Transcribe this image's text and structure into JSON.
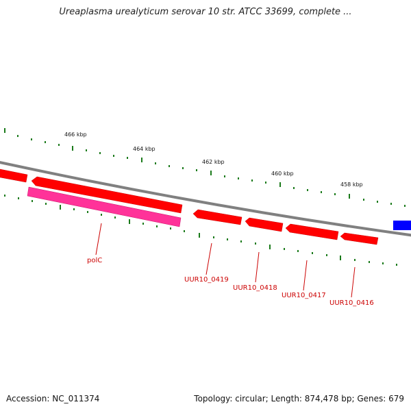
{
  "title": "Ureaplasma urealyticum serovar 10 str. ATCC 33699, complete ...",
  "footer": {
    "accession": "Accession: NC_011374",
    "topology": "Topology: circular; Length: 874,478 bp; Genes: 679"
  },
  "ticks": [
    "466 kbp",
    "464 kbp",
    "462 kbp",
    "460 kbp",
    "458 kbp"
  ],
  "genes": [
    {
      "name": "polC",
      "color": "#ff3399"
    },
    {
      "name": "UUR10_0419",
      "color": "#ff0000"
    },
    {
      "name": "UUR10_0418",
      "color": "#ff0000"
    },
    {
      "name": "UUR10_0417",
      "color": "#ff0000"
    },
    {
      "name": "UUR10_0416",
      "color": "#ff0000"
    }
  ],
  "colors": {
    "backbone": "#808080",
    "tick": "#1a7a1a",
    "gene_red": "#ff0000",
    "gene_magenta": "#ff3399",
    "gene_blue": "#0000ff",
    "label": "#cc0000"
  }
}
